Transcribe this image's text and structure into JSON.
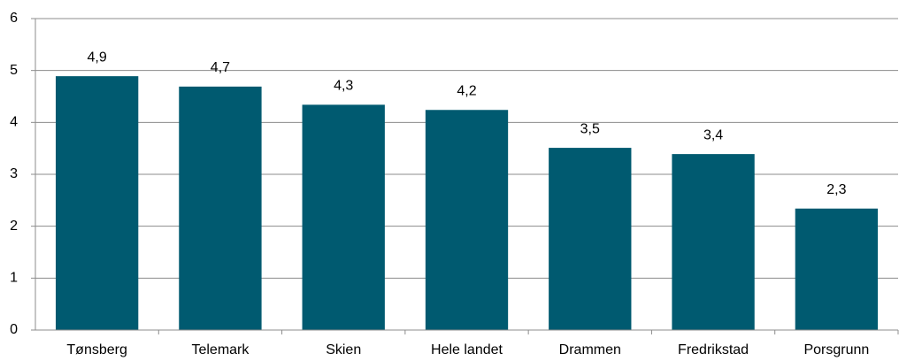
{
  "chart_data": {
    "type": "bar",
    "categories": [
      "Tønsberg",
      "Telemark",
      "Skien",
      "Hele landet",
      "Drammen",
      "Fredrikstad",
      "Porsgrunn"
    ],
    "values": [
      4.89,
      4.69,
      4.34,
      4.24,
      3.51,
      3.39,
      2.34
    ],
    "value_labels": [
      "4,9",
      "4,7",
      "4,3",
      "4,2",
      "3,5",
      "3,4",
      "2,3"
    ],
    "color": "#005a70",
    "ylim": [
      0,
      6
    ],
    "yticks": [
      0,
      1,
      2,
      3,
      4,
      5,
      6
    ],
    "grid": true
  }
}
